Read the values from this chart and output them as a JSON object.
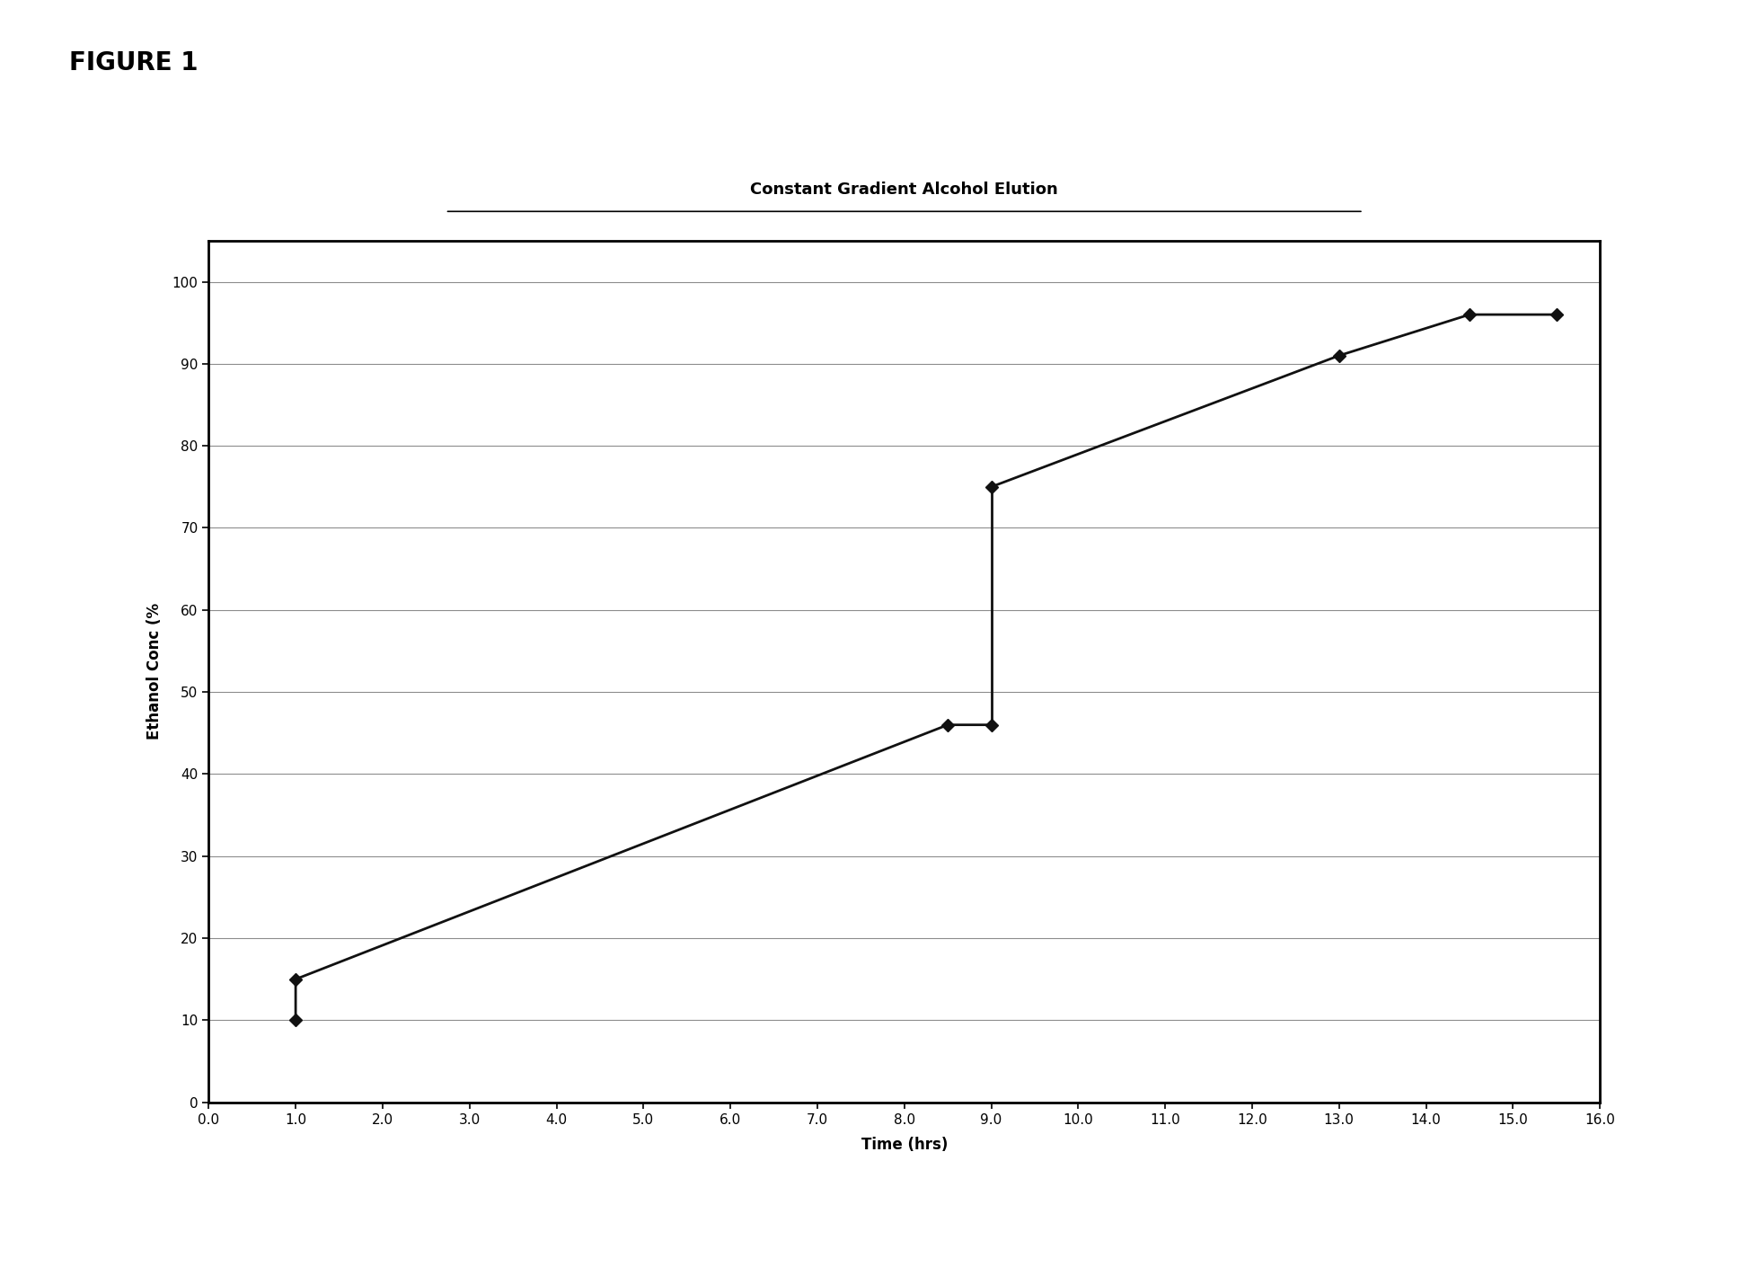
{
  "title": "Constant Gradient Alcohol Elution",
  "xlabel": "Time (hrs)",
  "ylabel": "Ethanol Conc (%",
  "xlim": [
    0.0,
    16.0
  ],
  "ylim": [
    0,
    105
  ],
  "xticks": [
    0.0,
    1.0,
    2.0,
    3.0,
    4.0,
    5.0,
    6.0,
    7.0,
    8.0,
    9.0,
    10.0,
    11.0,
    12.0,
    13.0,
    14.0,
    15.0,
    16.0
  ],
  "yticks": [
    0,
    10,
    20,
    30,
    40,
    50,
    60,
    70,
    80,
    90,
    100
  ],
  "segments": [
    {
      "x": [
        1.0,
        1.0,
        8.5,
        9.0
      ],
      "y": [
        10,
        15,
        46,
        46
      ]
    },
    {
      "x": [
        9.0,
        9.0
      ],
      "y": [
        46,
        75
      ]
    },
    {
      "x": [
        9.0,
        13.0,
        14.5,
        15.5
      ],
      "y": [
        75,
        91,
        96,
        96
      ]
    }
  ],
  "marker_x": [
    1.0,
    1.0,
    8.5,
    9.0,
    9.0,
    13.0,
    14.5,
    15.5
  ],
  "marker_y": [
    10,
    15,
    46,
    46,
    75,
    91,
    96,
    96
  ],
  "line_color": "#111111",
  "marker_color": "#111111",
  "marker_size": 7,
  "title_fontsize": 13,
  "axis_label_fontsize": 12,
  "tick_fontsize": 11,
  "figure_bg": "#ffffff",
  "figure_label": "FIGURE 1",
  "figure_label_fontsize": 20
}
